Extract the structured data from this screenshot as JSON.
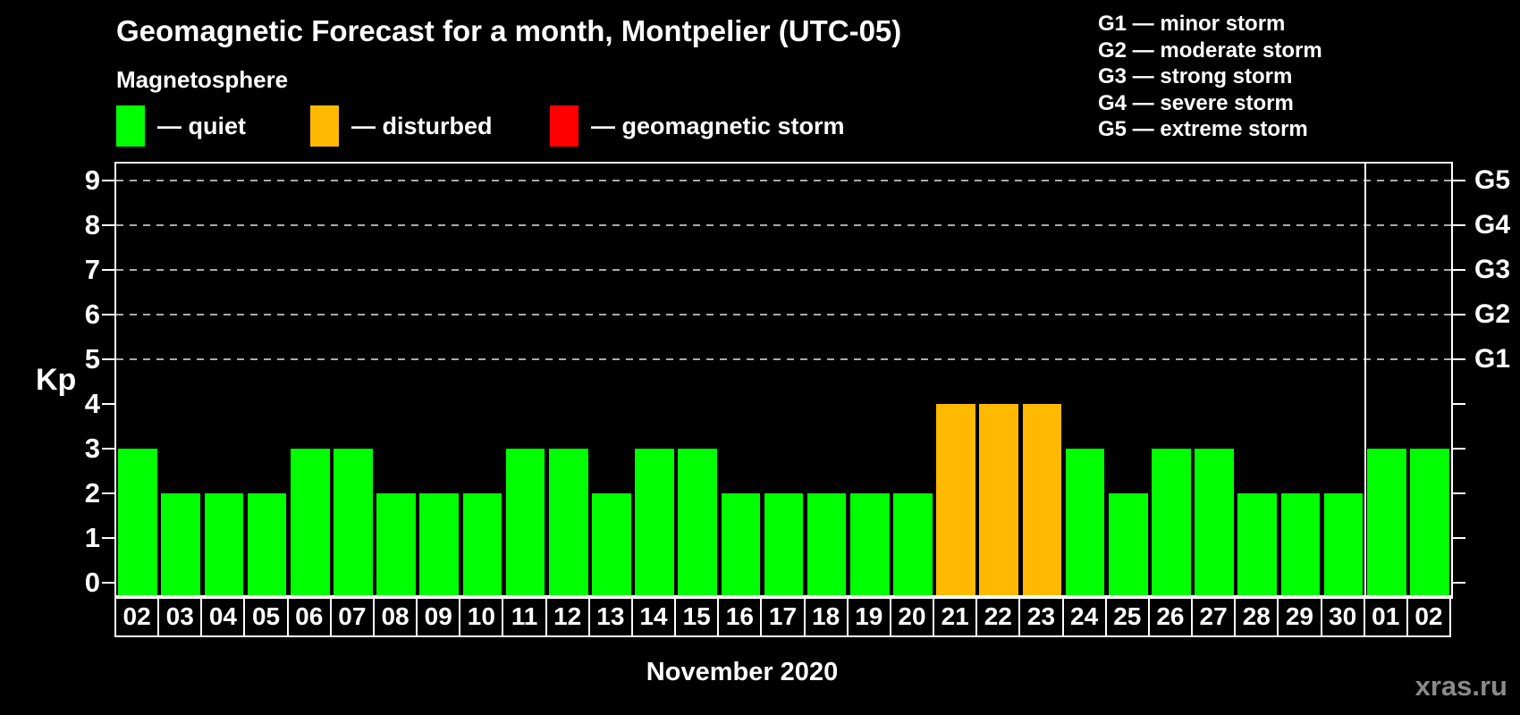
{
  "page": {
    "background": "#000000",
    "watermark": "xras.ru"
  },
  "header": {
    "title": "Geomagnetic Forecast for a month, Montpelier (UTC-05)",
    "subtitle": "Magnetosphere"
  },
  "legend": {
    "items": [
      {
        "key": "quiet",
        "label": "— quiet",
        "color": "#00ff00"
      },
      {
        "key": "disturbed",
        "label": "— disturbed",
        "color": "#ffba00"
      },
      {
        "key": "storm",
        "label": "— geomagnetic storm",
        "color": "#ff0000"
      }
    ]
  },
  "storm_scale_legend": [
    "G1 — minor storm",
    "G2 — moderate storm",
    "G3 — strong storm",
    "G4 — severe storm",
    "G5 — extreme storm"
  ],
  "chart_data": {
    "type": "bar",
    "title": "Geomagnetic Forecast for a month, Montpelier (UTC-05)",
    "xlabel": "November 2020",
    "ylabel": "Kp",
    "ylim": [
      0,
      9
    ],
    "y_ticks": [
      "0",
      "1",
      "2",
      "3",
      "4",
      "5",
      "6",
      "7",
      "8",
      "9"
    ],
    "grid_levels": [
      5,
      6,
      7,
      8,
      9
    ],
    "grid": "dashed horizontal lines at Kp 5-9",
    "legend_position": "top-left",
    "right_axis_labels": [
      {
        "kp": 5,
        "label": "G1"
      },
      {
        "kp": 6,
        "label": "G2"
      },
      {
        "kp": 7,
        "label": "G3"
      },
      {
        "kp": 8,
        "label": "G4"
      },
      {
        "kp": 9,
        "label": "G5"
      }
    ],
    "categories": [
      "02",
      "03",
      "04",
      "05",
      "06",
      "07",
      "08",
      "09",
      "10",
      "11",
      "12",
      "13",
      "14",
      "15",
      "16",
      "17",
      "18",
      "19",
      "20",
      "21",
      "22",
      "23",
      "24",
      "25",
      "26",
      "27",
      "28",
      "29",
      "30",
      "01",
      "02"
    ],
    "values": [
      3,
      2,
      2,
      2,
      3,
      3,
      2,
      2,
      2,
      3,
      3,
      2,
      3,
      3,
      2,
      2,
      2,
      2,
      2,
      4,
      4,
      4,
      3,
      2,
      3,
      3,
      2,
      2,
      2,
      3,
      3
    ],
    "month_separator_after_index": 28,
    "color_rules": {
      "quiet_max_kp": 3,
      "disturbed_max_kp": 4
    },
    "colors": {
      "quiet": "#00ff00",
      "disturbed": "#ffba00",
      "storm": "#ff0000",
      "grid": "#ababab",
      "axis": "#ffffff"
    }
  }
}
